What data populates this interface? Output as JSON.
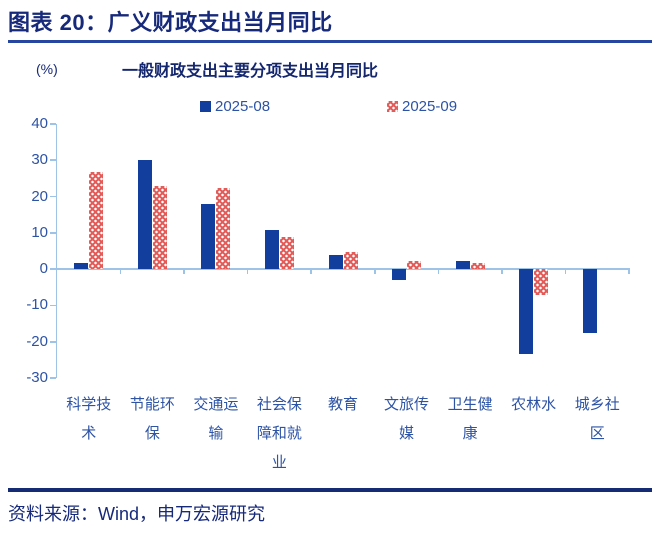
{
  "header": {
    "title": "图表 20：广义财政支出当月同比"
  },
  "chart_data": {
    "type": "bar",
    "title": "一般财政支出主要分项支出当月同比",
    "unit": "(%)",
    "categories": [
      "科学技术",
      "节能环保",
      "交通运输",
      "社会保障和就业",
      "教育",
      "文旅传媒",
      "卫生健康",
      "农林水",
      "城乡社区"
    ],
    "series": [
      {
        "name": "2025-08",
        "color": "#123F9D",
        "pattern": "",
        "values": [
          1.6,
          30.0,
          18.0,
          10.9,
          4.0,
          -3.0,
          2.3,
          -23.5,
          -17.5
        ]
      },
      {
        "name": "2025-09",
        "color": "#E25C59",
        "pattern": "white-dots",
        "values": [
          26.7,
          22.8,
          22.5,
          8.8,
          4.6,
          2.3,
          1.7,
          -7.0,
          0
        ]
      }
    ],
    "ylim": [
      -30,
      40
    ],
    "yticks": [
      40,
      30,
      20,
      10,
      0,
      -10,
      -20,
      -30
    ],
    "grid": false,
    "legend_position": "top"
  },
  "colors": {
    "bar_blue": "#123F9D",
    "bar_red": "#E25C59",
    "axis_light_blue": "#9DC3E6",
    "label_blue": "#2D53A5",
    "title_navy": "#16297A",
    "rule_blue": "#2746A0",
    "footer_rule_navy": "#152C74"
  },
  "footer": {
    "source": "资料来源：Wind，申万宏源研究"
  }
}
